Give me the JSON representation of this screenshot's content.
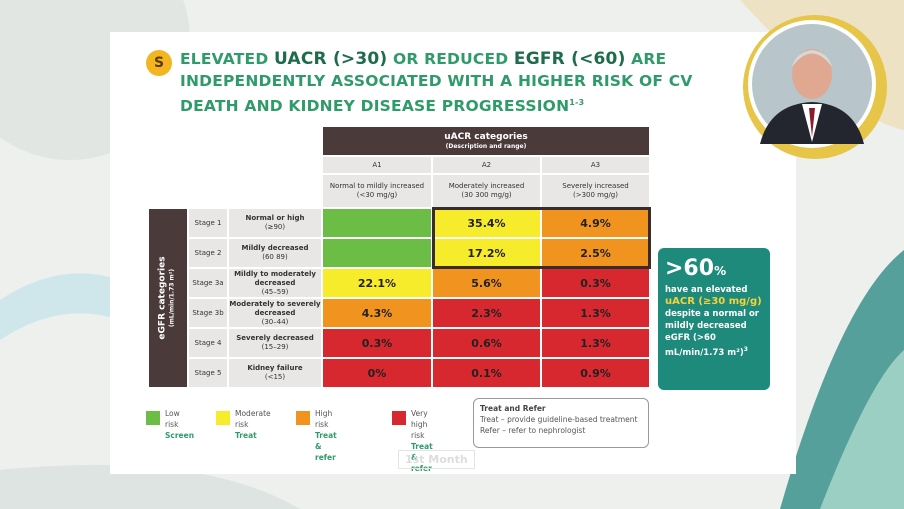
{
  "badge": "S",
  "title": {
    "parts": [
      "ELEVATED ",
      "UACR (>30)",
      " OR REDUCED  ",
      "EGFR (<60)",
      "  ARE INDEPENDENTLY ASSOCIATED WITH A HIGHER RISK OF CV DEATH AND KIDNEY DISEASE PROGRESSION"
    ],
    "reference": "1-3"
  },
  "table": {
    "column_header": {
      "title": "uACR categories",
      "subtitle": "(Description and range)"
    },
    "row_header": {
      "title": "eGFR categories",
      "subtitle": "(mL/min/1.73 m²)"
    },
    "columns": [
      {
        "code": "A1",
        "description": "Normal to mildly increased",
        "range": "(<30 mg/g)"
      },
      {
        "code": "A2",
        "description": "Moderately increased",
        "range": "(30  300 mg/g)"
      },
      {
        "code": "A3",
        "description": "Severely increased",
        "range": "(>300 mg/g)"
      }
    ],
    "rows": [
      {
        "stage": "Stage 1",
        "description": "Normal or high",
        "range": "(≥90)",
        "cells": [
          {
            "text": "",
            "color": "#6cbd45"
          },
          {
            "text": "35.4%",
            "color": "#f7ec2c"
          },
          {
            "text": "4.9%",
            "color": "#f0941f"
          }
        ]
      },
      {
        "stage": "Stage 2",
        "description": "Mildly decreased",
        "range": "(60  89)",
        "cells": [
          {
            "text": "",
            "color": "#6cbd45"
          },
          {
            "text": "17.2%",
            "color": "#f7ec2c"
          },
          {
            "text": "2.5%",
            "color": "#f0941f"
          }
        ]
      },
      {
        "stage": "Stage 3a",
        "description": "Mildly to moderately decreased",
        "range": "(45–59)",
        "cells": [
          {
            "text": "22.1%",
            "color": "#f7ec2c"
          },
          {
            "text": "5.6%",
            "color": "#f0941f"
          },
          {
            "text": "0.3%",
            "color": "#d7282f"
          }
        ]
      },
      {
        "stage": "Stage 3b",
        "description": "Moderately to severely decreased",
        "range": "(30–44)",
        "cells": [
          {
            "text": "4.3%",
            "color": "#f0941f"
          },
          {
            "text": "2.3%",
            "color": "#d7282f"
          },
          {
            "text": "1.3%",
            "color": "#d7282f"
          }
        ]
      },
      {
        "stage": "Stage 4",
        "description": "Severely decreased",
        "range": "(15–29)",
        "cells": [
          {
            "text": "0.3%",
            "color": "#d7282f"
          },
          {
            "text": "0.6%",
            "color": "#d7282f"
          },
          {
            "text": "1.3%",
            "color": "#d7282f"
          }
        ]
      },
      {
        "stage": "Stage 5",
        "description": "Kidney failure",
        "range": "(<15)",
        "cells": [
          {
            "text": "0%",
            "color": "#d7282f"
          },
          {
            "text": "0.1%",
            "color": "#d7282f"
          },
          {
            "text": "0.9%",
            "color": "#d7282f"
          }
        ]
      }
    ]
  },
  "legend": [
    {
      "risk": "Low risk",
      "action": "Screen",
      "color": "#6cbd45",
      "action_color": "#2f9a6a"
    },
    {
      "risk": "Moderate risk",
      "action": "Treat",
      "color": "#f7ec2c",
      "action_color": "#2f9a6a"
    },
    {
      "risk": "High risk",
      "action": "Treat & refer",
      "color": "#f0941f",
      "action_color": "#2f9a6a"
    },
    {
      "risk": "Very high risk",
      "action": "Treat & refer",
      "color": "#d7282f",
      "action_color": "#2f9a6a"
    }
  ],
  "treat_refer": {
    "title": "Treat and Refer",
    "lines": [
      "Treat – provide guideline-based treatment",
      "Refer – refer to nephrologist"
    ]
  },
  "callout": {
    "headline": ">60",
    "headline_unit": "%",
    "line1": "have an elevated",
    "highlight": "uACR (≥30 mg/g)",
    "line2": "despite a normal or mildly decreased eGFR (>60 mL/min/1.73 m²)",
    "reference": "3"
  },
  "watermark": "1st Month"
}
